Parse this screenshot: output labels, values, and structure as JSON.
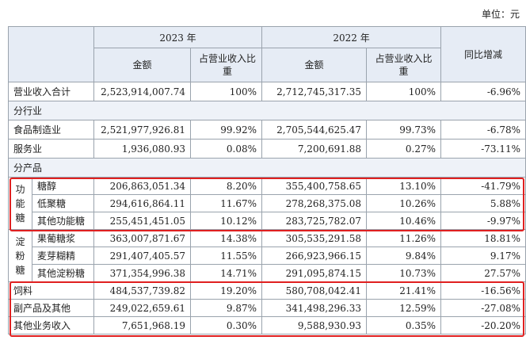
{
  "header": {
    "unit": "单位：元"
  },
  "table": {
    "header_rows": [
      [
        "2023 年",
        "2022 年",
        "同比增减"
      ],
      [
        "金额",
        "占营业收入比重",
        "金额",
        "占营业收入比重"
      ]
    ],
    "body": [
      {
        "cells": [
          "营业收入合计",
          "2,523,914,007.74",
          "100%",
          "2,712,745,317.35",
          "100%",
          "-6.96%"
        ]
      },
      {
        "section": "分行业"
      },
      {
        "cells": [
          "食品制造业",
          "2,521,977,926.81",
          "99.92%",
          "2,705,544,625.47",
          "99.73%",
          "-6.78%"
        ]
      },
      {
        "cells": [
          "服务业",
          "1,936,080.93",
          "0.08%",
          "7,200,691.88",
          "0.27%",
          "-73.11%"
        ]
      },
      {
        "section": "分产品"
      },
      {
        "group": "功能糖",
        "rows": [
          [
            "糖醇",
            "206,863,051.34",
            "8.20%",
            "355,400,758.65",
            "13.10%",
            "-41.79%"
          ],
          [
            "低聚糖",
            "294,616,864.11",
            "11.67%",
            "278,268,375.08",
            "10.26%",
            "5.88%"
          ],
          [
            "其他功能糖",
            "255,451,451.05",
            "10.12%",
            "283,725,782.07",
            "10.46%",
            "-9.97%"
          ]
        ]
      },
      {
        "group": "淀粉糖",
        "rows": [
          [
            "果葡糖浆",
            "363,007,871.67",
            "14.38%",
            "305,535,291.58",
            "11.26%",
            "18.81%"
          ],
          [
            "麦芽糊精",
            "291,407,405.57",
            "11.55%",
            "266,923,966.15",
            "9.84%",
            "9.17%"
          ],
          [
            "其他淀粉糖",
            "371,354,996.38",
            "14.71%",
            "291,095,874.15",
            "10.73%",
            "27.57%"
          ]
        ]
      },
      {
        "cells": [
          "饲料",
          "484,537,739.82",
          "19.20%",
          "580,708,042.41",
          "21.41%",
          "-16.56%"
        ]
      },
      {
        "cells": [
          "副产品及其他",
          "249,022,659.61",
          "9.87%",
          "341,498,296.33",
          "12.59%",
          "-27.08%"
        ]
      },
      {
        "cells": [
          "其他业务收入",
          "7,651,968.19",
          "0.30%",
          "9,588,930.93",
          "0.35%",
          "-20.20%"
        ]
      }
    ]
  }
}
